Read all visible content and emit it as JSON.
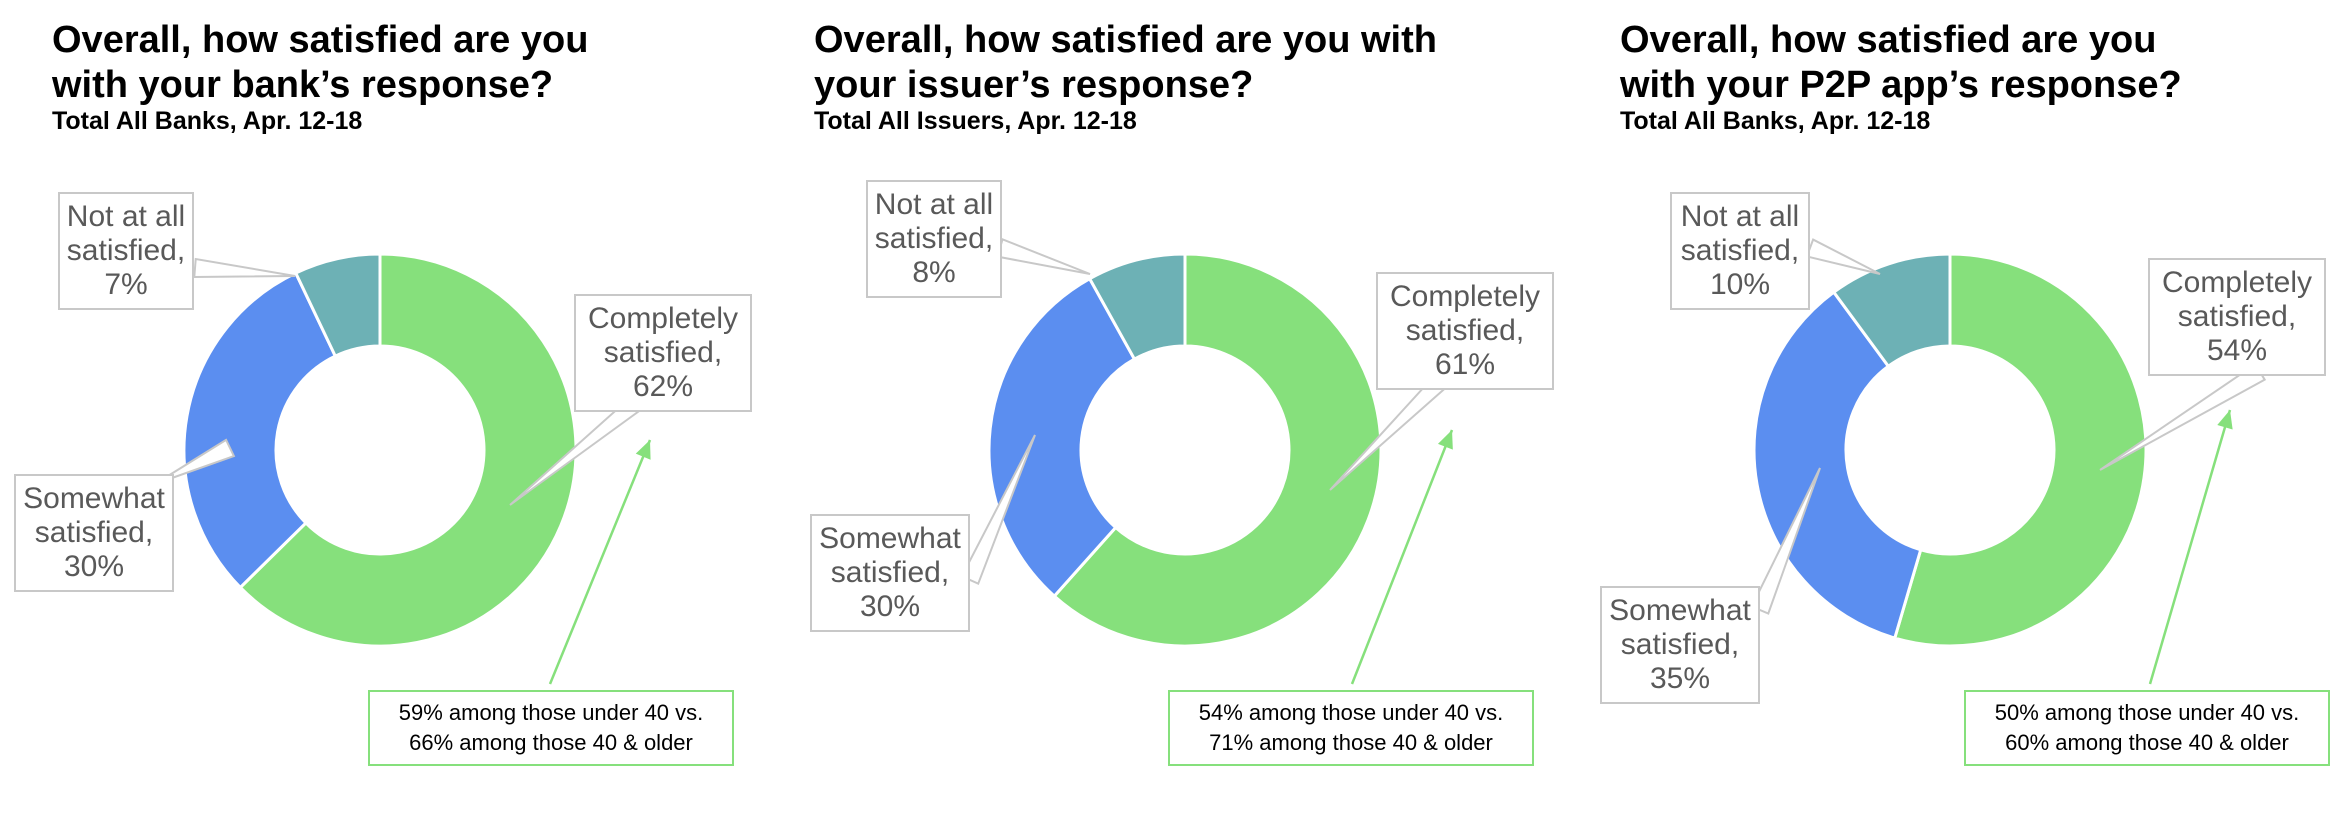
{
  "chart_data": [
    {
      "type": "pie",
      "title": "Overall, how satisfied are you\nwith your bank’s response?",
      "subtitle": "Total All Banks, Apr. 12-18",
      "categories": [
        "Completely satisfied",
        "Somewhat satisfied",
        "Not at all satisfied"
      ],
      "values": [
        62,
        30,
        7
      ],
      "colors": [
        "#86e07c",
        "#5b8ef0",
        "#6db1b5"
      ],
      "labels": [
        {
          "name": "Completely",
          "name2": "satisfied,",
          "value": "62%"
        },
        {
          "name": "Somewhat",
          "name2": "satisfied,",
          "value": "30%"
        },
        {
          "name": "Not at all",
          "name2": "satisfied,",
          "value": "7%"
        }
      ],
      "note": {
        "line1": "59% among those under 40 vs.",
        "line2": "66% among those 40 & older"
      }
    },
    {
      "type": "pie",
      "title": "Overall, how satisfied are you with\nyour issuer’s response?",
      "subtitle": "Total All Issuers, Apr. 12-18",
      "categories": [
        "Completely satisfied",
        "Somewhat satisfied",
        "Not at all satisfied"
      ],
      "values": [
        61,
        30,
        8
      ],
      "colors": [
        "#86e07c",
        "#5b8ef0",
        "#6db1b5"
      ],
      "labels": [
        {
          "name": "Completely",
          "name2": "satisfied,",
          "value": "61%"
        },
        {
          "name": "Somewhat",
          "name2": "satisfied,",
          "value": "30%"
        },
        {
          "name": "Not at all",
          "name2": "satisfied,",
          "value": "8%"
        }
      ],
      "note": {
        "line1": "54% among those under 40 vs.",
        "line2": "71% among those 40 & older"
      }
    },
    {
      "type": "pie",
      "title": "Overall, how satisfied are you\nwith your P2P app’s response?",
      "subtitle": "Total All Banks, Apr. 12-18",
      "categories": [
        "Completely satisfied",
        "Somewhat satisfied",
        "Not at all satisfied"
      ],
      "values": [
        54,
        35,
        10
      ],
      "colors": [
        "#86e07c",
        "#5b8ef0",
        "#6db1b5"
      ],
      "labels": [
        {
          "name": "Completely",
          "name2": "satisfied,",
          "value": "54%"
        },
        {
          "name": "Somewhat",
          "name2": "satisfied,",
          "value": "35%"
        },
        {
          "name": "Not at all",
          "name2": "satisfied,",
          "value": "10%"
        }
      ],
      "note": {
        "line1": "50% among those under 40 vs.",
        "line2": "60% among those 40 & older"
      }
    }
  ]
}
